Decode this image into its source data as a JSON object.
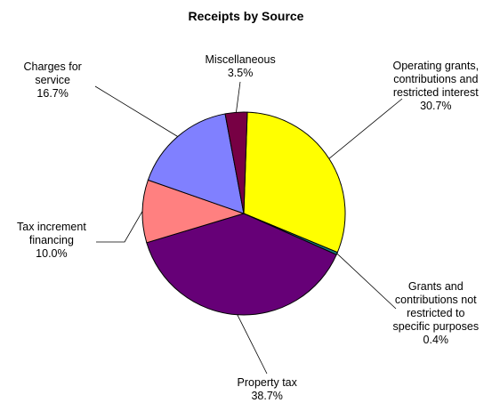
{
  "chart_data": {
    "type": "pie",
    "title": "Receipts by Source",
    "slices": [
      {
        "label": "Operating grants, contributions and restricted interest",
        "value": 30.7,
        "pct_label": "30.7%",
        "color": "#ffff00"
      },
      {
        "label": "Grants and contributions not restricted to specific purposes",
        "value": 0.4,
        "pct_label": "0.4%",
        "color": "#1a8080"
      },
      {
        "label": "Property tax",
        "value": 38.7,
        "pct_label": "38.7%",
        "color": "#660077"
      },
      {
        "label": "Tax increment financing",
        "value": 10.0,
        "pct_label": "10.0%",
        "color": "#ff8080"
      },
      {
        "label": "Charges for service",
        "value": 16.7,
        "pct_label": "16.7%",
        "color": "#8080ff"
      },
      {
        "label": "Miscellaneous",
        "value": 3.5,
        "pct_label": "3.5%",
        "color": "#770044"
      }
    ],
    "label_lines": [
      [
        "Operating grants,",
        "contributions and",
        "restricted interest"
      ],
      [
        "Grants and",
        "contributions not",
        "restricted to",
        "specific purposes"
      ],
      [
        "Property tax"
      ],
      [
        "Tax increment",
        "financing"
      ],
      [
        "Charges for",
        "service"
      ],
      [
        "Miscellaneous"
      ]
    ]
  }
}
